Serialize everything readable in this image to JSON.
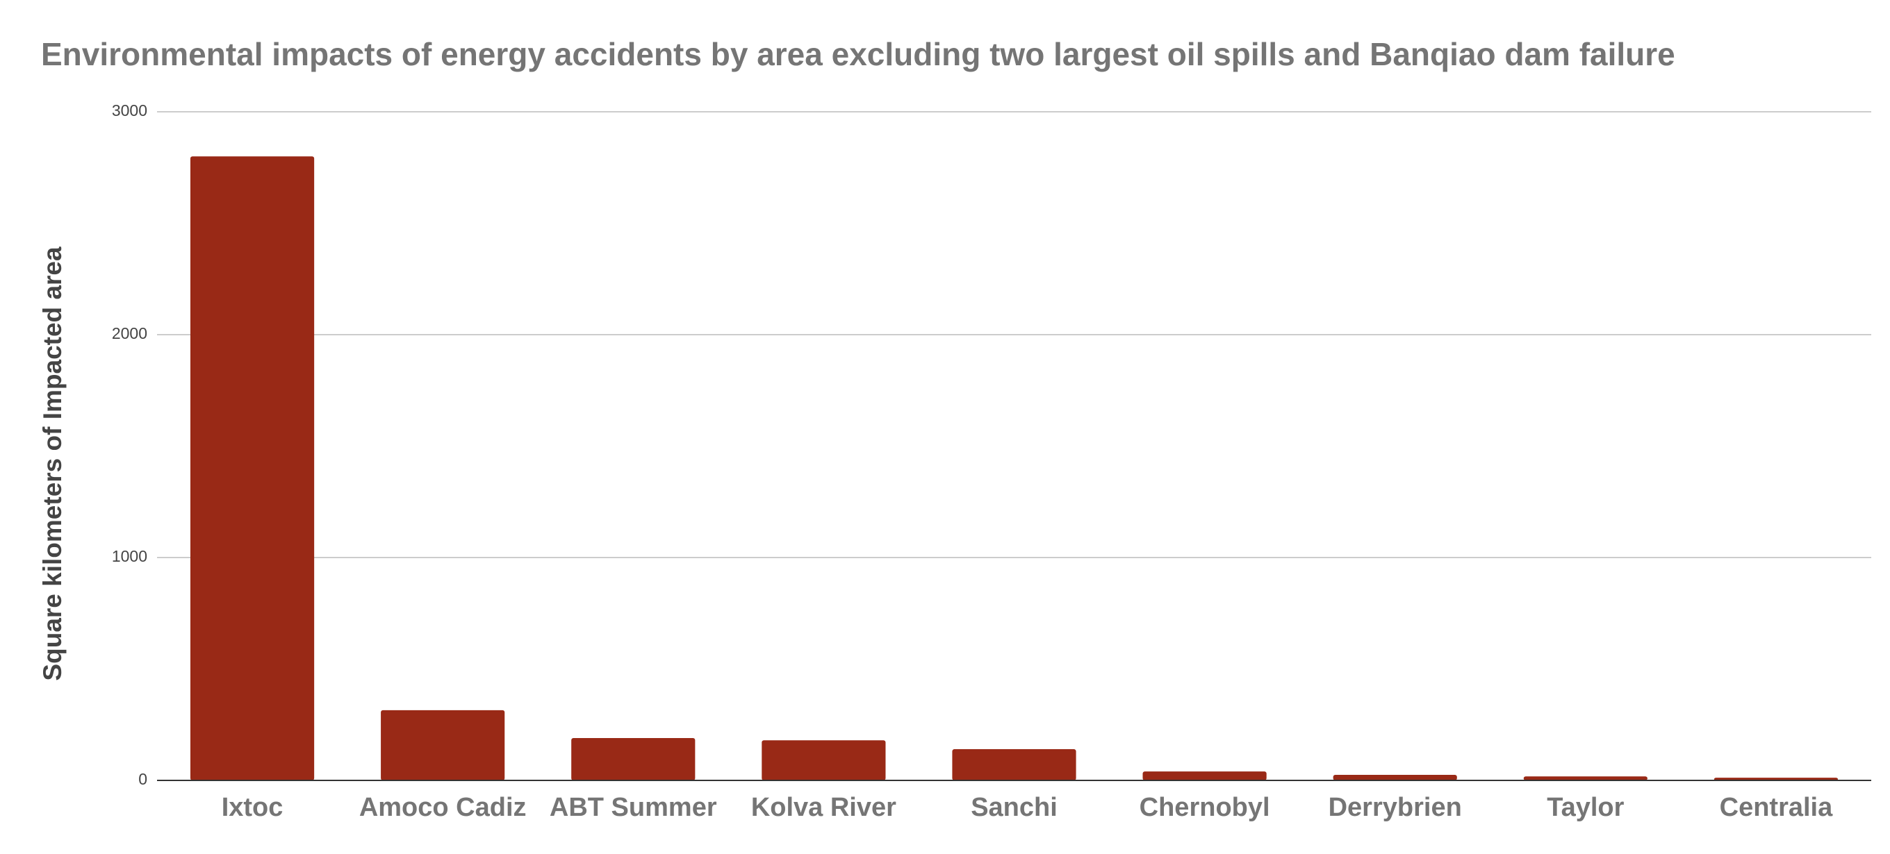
{
  "chart_data": {
    "type": "bar",
    "title": "Environmental impacts of energy accidents by area excluding two largest oil spills and Banqiao dam failure",
    "y_label": "Square kilometers of Impacted area",
    "categories": [
      "Ixtoc",
      "Amoco Cadiz",
      "ABT Summer",
      "Kolva River",
      "Sanchi",
      "Chernobyl",
      "Derrybrien",
      "Taylor",
      "Centralia"
    ],
    "values": [
      2800,
      315,
      190,
      180,
      140,
      40,
      25,
      18,
      12
    ],
    "color": "#992916",
    "ylim": [
      0,
      3000
    ],
    "yticks": [
      0,
      1000,
      2000,
      3000
    ],
    "grid": true
  }
}
